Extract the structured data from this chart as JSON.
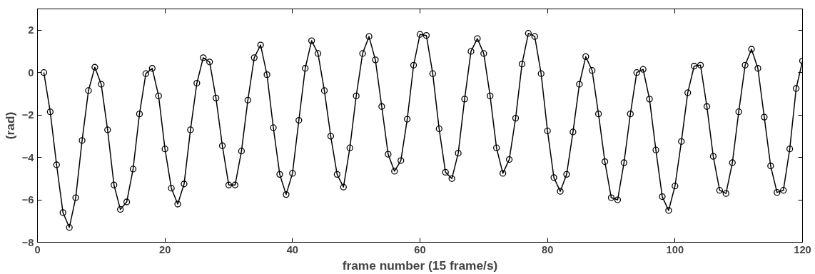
{
  "chart_data": {
    "type": "line",
    "xlabel": "frame number (15 frame/s)",
    "ylabel": "(rad)",
    "xlim": [
      0,
      120
    ],
    "ylim": [
      -8,
      3
    ],
    "xticks": [
      0,
      20,
      40,
      60,
      80,
      100,
      120
    ],
    "yticks": [
      -8,
      -6,
      -4,
      -2,
      0,
      2
    ],
    "grid": false,
    "marker": "circle",
    "line_style": "solid",
    "x": [
      1,
      2,
      3,
      4,
      5,
      6,
      7,
      8,
      9,
      10,
      11,
      12,
      13,
      14,
      15,
      16,
      17,
      18,
      19,
      20,
      21,
      22,
      23,
      24,
      25,
      26,
      27,
      28,
      29,
      30,
      31,
      32,
      33,
      34,
      35,
      36,
      37,
      38,
      39,
      40,
      41,
      42,
      43,
      44,
      45,
      46,
      47,
      48,
      49,
      50,
      51,
      52,
      53,
      54,
      55,
      56,
      57,
      58,
      59,
      60,
      61,
      62,
      63,
      64,
      65,
      66,
      67,
      68,
      69,
      70,
      71,
      72,
      73,
      74,
      75,
      76,
      77,
      78,
      79,
      80,
      81,
      82,
      83,
      84,
      85,
      86,
      87,
      88,
      89,
      90,
      91,
      92,
      93,
      94,
      95,
      96,
      97,
      98,
      99,
      100,
      101,
      102,
      103,
      104,
      105,
      106,
      107,
      108,
      109,
      110,
      111,
      112,
      113,
      114,
      115,
      116,
      117,
      118,
      119,
      120
    ],
    "series": [
      {
        "color": "#000000",
        "values": [
          0,
          -1.85,
          -4.35,
          -6.6,
          -7.3,
          -5.9,
          -3.2,
          -0.85,
          0.25,
          -0.55,
          -2.7,
          -5.3,
          -6.45,
          -6.1,
          -4.55,
          -1.95,
          -0.05,
          0.2,
          -1.1,
          -3.6,
          -5.45,
          -6.2,
          -5.25,
          -2.7,
          -0.5,
          0.7,
          0.5,
          -1.2,
          -3.45,
          -5.3,
          -5.3,
          -3.7,
          -1.3,
          0.7,
          1.3,
          -0.1,
          -2.6,
          -4.8,
          -5.75,
          -4.75,
          -2.25,
          0.2,
          1.5,
          0.9,
          -0.85,
          -3.0,
          -4.8,
          -5.4,
          -3.55,
          -1.1,
          0.9,
          1.7,
          0.6,
          -1.6,
          -3.85,
          -4.65,
          -4.15,
          -2.2,
          0.35,
          1.8,
          1.75,
          -0.05,
          -2.65,
          -4.7,
          -5.0,
          -3.8,
          -1.25,
          1.0,
          1.6,
          0.9,
          -1.1,
          -3.55,
          -4.75,
          -4.1,
          -2.15,
          0.4,
          1.85,
          1.7,
          -0.05,
          -2.75,
          -4.95,
          -5.6,
          -4.8,
          -2.8,
          -0.55,
          0.75,
          0.1,
          -1.95,
          -4.2,
          -5.9,
          -6.0,
          -4.25,
          -1.95,
          0.0,
          0.15,
          -1.25,
          -3.65,
          -5.85,
          -6.5,
          -5.35,
          -3.25,
          -0.95,
          0.3,
          0.35,
          -1.6,
          -3.95,
          -5.55,
          -5.7,
          -4.25,
          -1.85,
          0.35,
          1.1,
          0.2,
          -2.1,
          -4.4,
          -5.65,
          -5.55,
          -3.6,
          -0.75,
          0.55
        ]
      }
    ]
  }
}
